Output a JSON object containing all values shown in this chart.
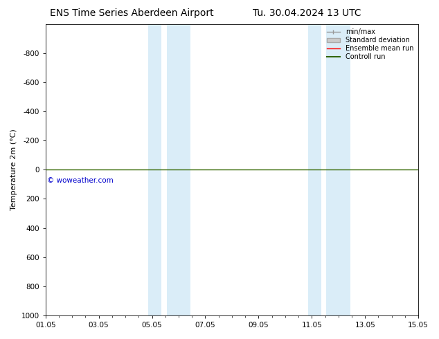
{
  "title_left": "ENS Time Series Aberdeen Airport",
  "title_right": "Tu. 30.04.2024 13 UTC",
  "ylabel": "Temperature 2m (°C)",
  "xtick_labels": [
    "01.05",
    "03.05",
    "05.05",
    "07.05",
    "09.05",
    "11.05",
    "13.05",
    "15.05"
  ],
  "xtick_positions": [
    0,
    2,
    4,
    6,
    8,
    10,
    12,
    14
  ],
  "ylim_bottom": -1000,
  "ylim_top": 1000,
  "yticks": [
    -800,
    -600,
    -400,
    -200,
    0,
    200,
    400,
    600,
    800,
    1000
  ],
  "ytick_labels": [
    "-800",
    "-600",
    "-400",
    "-200",
    "0",
    "200",
    "400",
    "600",
    "800",
    "1000"
  ],
  "bg_color": "#ffffff",
  "plot_bg_color": "#ffffff",
  "shaded_bands": [
    {
      "xstart": 3.85,
      "xend": 4.35,
      "color": "#daedf8"
    },
    {
      "xstart": 4.55,
      "xend": 5.45,
      "color": "#daedf8"
    },
    {
      "xstart": 9.85,
      "xend": 10.35,
      "color": "#daedf8"
    },
    {
      "xstart": 10.55,
      "xend": 11.45,
      "color": "#daedf8"
    }
  ],
  "horizontal_line_y": 0,
  "horizontal_line_color": "#336600",
  "watermark_text": "© woweather.com",
  "watermark_color": "#0000cc",
  "legend_items": [
    {
      "label": "min/max",
      "color": "#999999",
      "lw": 1.0
    },
    {
      "label": "Standard deviation",
      "color": "#cccccc",
      "lw": 6
    },
    {
      "label": "Ensemble mean run",
      "color": "#ff0000",
      "lw": 1.0
    },
    {
      "label": "Controll run",
      "color": "#336600",
      "lw": 1.5
    }
  ],
  "title_fontsize": 10,
  "axis_fontsize": 8,
  "tick_fontsize": 7.5,
  "legend_fontsize": 7
}
